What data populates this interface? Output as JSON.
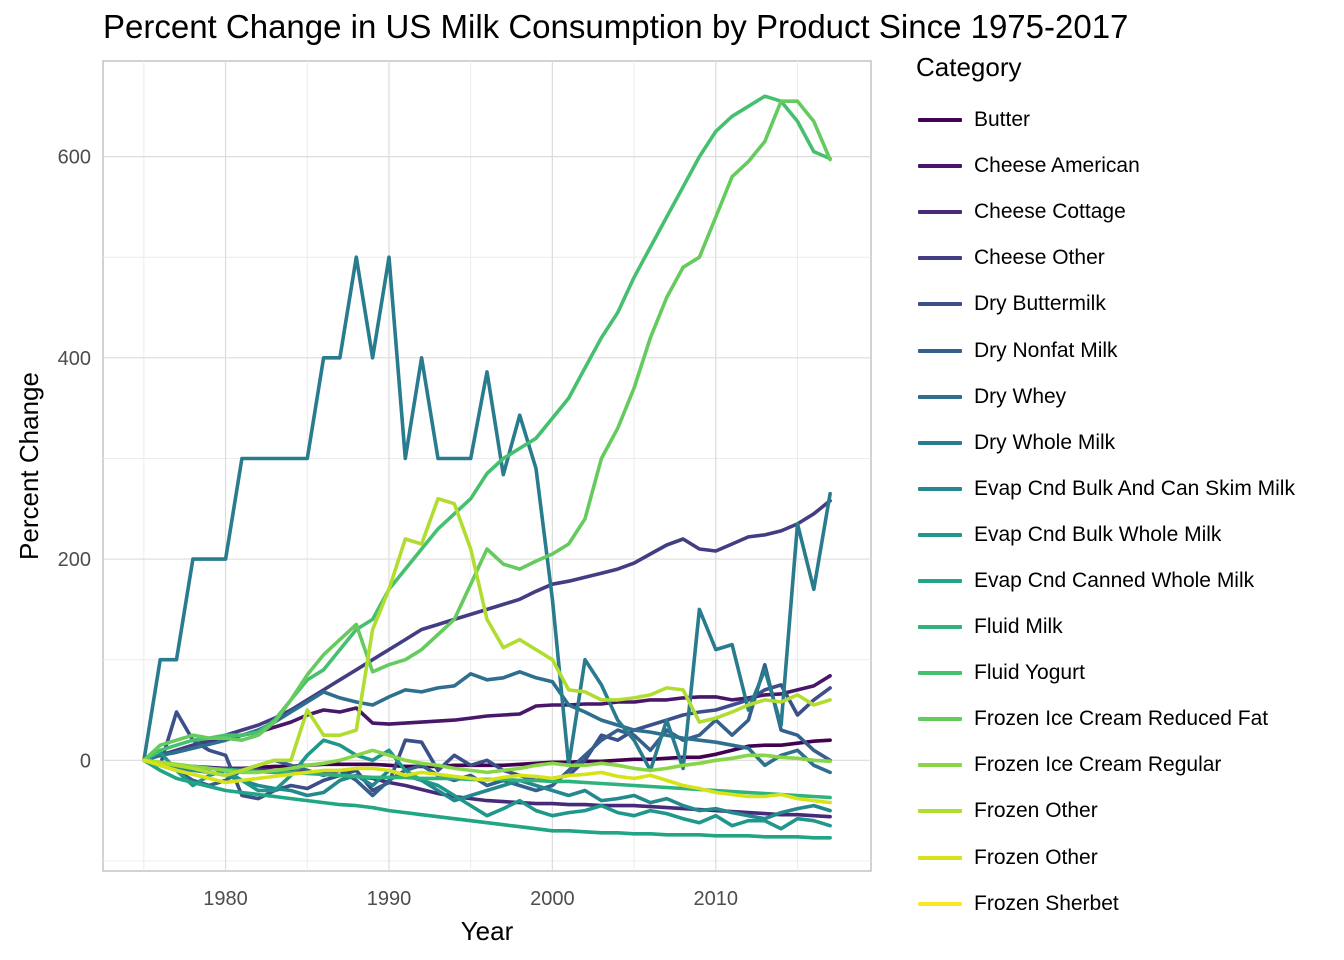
{
  "chart_data": {
    "type": "line",
    "title": "Percent Change in US Milk Consumption by Product Since 1975-2017",
    "xlabel": "Year",
    "ylabel": "Percent Change",
    "xlim": [
      1972.5,
      2019.5
    ],
    "ylim": [
      -110,
      695
    ],
    "x_ticks": [
      1980,
      1990,
      2000,
      2010
    ],
    "y_ticks": [
      0,
      200,
      400,
      600
    ],
    "grid": true,
    "legend_title": "Category",
    "legend_position": "right",
    "x": [
      1975,
      1976,
      1977,
      1978,
      1979,
      1980,
      1981,
      1982,
      1983,
      1984,
      1985,
      1986,
      1987,
      1988,
      1989,
      1990,
      1991,
      1992,
      1993,
      1994,
      1995,
      1996,
      1997,
      1998,
      1999,
      2000,
      2001,
      2002,
      2003,
      2004,
      2005,
      2006,
      2007,
      2008,
      2009,
      2010,
      2011,
      2012,
      2013,
      2014,
      2015,
      2016,
      2017
    ],
    "series": [
      {
        "name": "Butter",
        "color": "#440154",
        "values": [
          0,
          -3,
          -5,
          -7,
          -8,
          -8,
          -8,
          -7,
          -6,
          -6,
          -5,
          -4,
          -4,
          -4,
          -4,
          -5,
          -6,
          -6,
          -6,
          -5,
          -5,
          -5,
          -5,
          -4,
          -3,
          -2,
          -2,
          -1,
          -1,
          0,
          1,
          1,
          2,
          3,
          3,
          6,
          10,
          14,
          15,
          15,
          17,
          19,
          20
        ]
      },
      {
        "name": "Cheese American",
        "color": "#481769",
        "values": [
          0,
          5,
          10,
          15,
          18,
          22,
          25,
          28,
          33,
          38,
          45,
          50,
          48,
          52,
          37,
          36,
          37,
          38,
          39,
          40,
          42,
          44,
          45,
          46,
          54,
          55,
          55,
          56,
          56,
          58,
          58,
          60,
          60,
          62,
          63,
          63,
          60,
          62,
          65,
          66,
          70,
          74,
          84
        ]
      },
      {
        "name": "Cheese Cottage",
        "color": "#472A7A",
        "values": [
          0,
          -3,
          -5,
          -6,
          -7,
          -8,
          -8,
          -9,
          -10,
          -11,
          -12,
          -13,
          -15,
          -16,
          -18,
          -22,
          -25,
          -29,
          -33,
          -36,
          -38,
          -40,
          -41,
          -42,
          -43,
          -43,
          -44,
          -44,
          -45,
          -45,
          -45,
          -46,
          -47,
          -48,
          -49,
          -50,
          -51,
          -52,
          -53,
          -54,
          -54,
          -55,
          -56
        ]
      },
      {
        "name": "Cheese Other",
        "color": "#433D84",
        "values": [
          0,
          5,
          10,
          15,
          20,
          25,
          30,
          35,
          42,
          50,
          60,
          70,
          80,
          90,
          100,
          110,
          120,
          130,
          135,
          140,
          145,
          150,
          155,
          160,
          168,
          175,
          178,
          182,
          186,
          190,
          196,
          205,
          214,
          220,
          210,
          208,
          215,
          222,
          224,
          228,
          235,
          245,
          258
        ]
      },
      {
        "name": "Dry Buttermilk",
        "color": "#3C4F8A",
        "values": [
          0,
          -5,
          48,
          20,
          10,
          5,
          -35,
          -38,
          -30,
          -25,
          -28,
          -20,
          -15,
          -10,
          -30,
          -22,
          20,
          18,
          -10,
          5,
          -5,
          0,
          -10,
          -15,
          -20,
          -18,
          -15,
          0,
          25,
          20,
          30,
          35,
          40,
          45,
          48,
          50,
          55,
          60,
          70,
          75,
          45,
          60,
          72
        ]
      },
      {
        "name": "Dry Nonfat Milk",
        "color": "#35608D",
        "values": [
          0,
          -5,
          -10,
          -20,
          -25,
          -20,
          -10,
          -5,
          0,
          -5,
          -10,
          -15,
          -10,
          -20,
          -35,
          -20,
          -10,
          -5,
          -15,
          -20,
          -15,
          -25,
          -20,
          -25,
          -30,
          -25,
          -10,
          5,
          20,
          30,
          25,
          10,
          30,
          20,
          25,
          40,
          25,
          40,
          95,
          30,
          25,
          10,
          0
        ]
      },
      {
        "name": "Dry Whey",
        "color": "#2E6F8E",
        "values": [
          0,
          5,
          8,
          12,
          16,
          20,
          25,
          30,
          38,
          48,
          58,
          68,
          62,
          58,
          55,
          63,
          70,
          68,
          72,
          74,
          86,
          80,
          82,
          88,
          82,
          78,
          55,
          48,
          40,
          35,
          30,
          28,
          25,
          22,
          20,
          18,
          15,
          12,
          -5,
          5,
          10,
          -5,
          -12
        ]
      },
      {
        "name": "Dry Whole Milk",
        "color": "#297B8E",
        "values": [
          0,
          100,
          100,
          200,
          200,
          200,
          300,
          300,
          300,
          300,
          300,
          400,
          400,
          500,
          400,
          500,
          300,
          400,
          300,
          300,
          300,
          386,
          284,
          343,
          290,
          160,
          -5,
          100,
          75,
          40,
          20,
          -10,
          40,
          -8,
          150,
          110,
          115,
          50,
          90,
          35,
          235,
          170,
          265
        ]
      },
      {
        "name": "Evap Cnd Bulk And Can Skim Milk",
        "color": "#23898E",
        "values": [
          0,
          -3,
          -8,
          -10,
          -12,
          -15,
          -20,
          -25,
          -28,
          -30,
          -35,
          -32,
          -20,
          -15,
          -25,
          -10,
          -15,
          -20,
          -30,
          -40,
          -35,
          -30,
          -25,
          -20,
          -25,
          -30,
          -35,
          -30,
          -40,
          -38,
          -35,
          -42,
          -38,
          -45,
          -50,
          -48,
          -52,
          -55,
          -58,
          -52,
          -48,
          -45,
          -50
        ]
      },
      {
        "name": "Evap Cnd Bulk Whole Milk",
        "color": "#1F978B",
        "values": [
          0,
          8,
          -10,
          -25,
          -15,
          -10,
          -20,
          -30,
          -30,
          -15,
          5,
          20,
          15,
          5,
          0,
          10,
          -10,
          -20,
          -25,
          -35,
          -45,
          -55,
          -48,
          -40,
          -50,
          -55,
          -52,
          -50,
          -45,
          -52,
          -55,
          -50,
          -53,
          -58,
          -62,
          -55,
          -65,
          -60,
          -60,
          -68,
          -58,
          -60,
          -65
        ]
      },
      {
        "name": "Evap Cnd Canned Whole Milk",
        "color": "#21A585",
        "values": [
          0,
          -10,
          -18,
          -22,
          -26,
          -30,
          -32,
          -34,
          -36,
          -38,
          -40,
          -42,
          -44,
          -45,
          -47,
          -50,
          -52,
          -54,
          -56,
          -58,
          -60,
          -62,
          -64,
          -66,
          -68,
          -70,
          -70,
          -71,
          -72,
          -72,
          -73,
          -73,
          -74,
          -74,
          -74,
          -75,
          -75,
          -75,
          -76,
          -76,
          -76,
          -77,
          -77
        ]
      },
      {
        "name": "Fluid Milk",
        "color": "#2EB37C",
        "values": [
          0,
          -3,
          -5,
          -6,
          -8,
          -9,
          -10,
          -11,
          -12,
          -12,
          -13,
          -14,
          -15,
          -16,
          -17,
          -17,
          -17,
          -18,
          -18,
          -18,
          -19,
          -19,
          -19,
          -20,
          -20,
          -21,
          -21,
          -22,
          -23,
          -24,
          -25,
          -26,
          -27,
          -28,
          -29,
          -30,
          -31,
          -32,
          -33,
          -34,
          -35,
          -36,
          -37
        ]
      },
      {
        "name": "Fluid Yogurt",
        "color": "#46C06F",
        "values": [
          0,
          10,
          15,
          20,
          22,
          25,
          25,
          28,
          40,
          60,
          80,
          90,
          110,
          130,
          140,
          170,
          190,
          210,
          230,
          245,
          260,
          285,
          300,
          310,
          320,
          340,
          360,
          390,
          420,
          445,
          480,
          510,
          540,
          570,
          600,
          625,
          640,
          650,
          660,
          655,
          635,
          605,
          598
        ]
      },
      {
        "name": "Frozen Ice Cream Reduced Fat",
        "color": "#65CB5E",
        "values": [
          0,
          15,
          20,
          25,
          22,
          22,
          20,
          25,
          38,
          60,
          85,
          105,
          120,
          135,
          88,
          95,
          100,
          110,
          125,
          140,
          175,
          210,
          195,
          190,
          198,
          205,
          215,
          240,
          300,
          330,
          370,
          420,
          460,
          490,
          500,
          540,
          580,
          595,
          615,
          655,
          655,
          635,
          597
        ]
      },
      {
        "name": "Frozen Ice Cream Regular",
        "color": "#89D548",
        "values": [
          0,
          -2,
          -4,
          -6,
          -8,
          -10,
          -12,
          -12,
          -10,
          -8,
          -5,
          -3,
          0,
          5,
          10,
          5,
          0,
          -3,
          -5,
          -8,
          -10,
          -12,
          -10,
          -8,
          -5,
          -3,
          -5,
          -5,
          -3,
          -5,
          -8,
          -10,
          -8,
          -5,
          -3,
          0,
          2,
          5,
          5,
          3,
          2,
          0,
          -1
        ]
      },
      {
        "name": "Frozen Other",
        "color": "#B0DD2F",
        "values": [
          0,
          -2,
          -5,
          -8,
          -12,
          -15,
          -10,
          -5,
          0,
          0,
          50,
          25,
          25,
          30,
          130,
          170,
          220,
          215,
          260,
          255,
          210,
          140,
          112,
          120,
          110,
          100,
          70,
          68,
          60,
          60,
          62,
          65,
          72,
          70,
          38,
          42,
          48,
          55,
          60,
          58,
          65,
          55,
          60
        ]
      },
      {
        "name": "Frozen Sherbet",
        "color": "#D8E219",
        "values": [
          0,
          -5,
          -10,
          -14,
          -18,
          -22,
          -20,
          -18,
          -16,
          -14,
          -12,
          -10,
          -10,
          -8,
          -8,
          -10,
          -15,
          -12,
          -14,
          -16,
          -18,
          -20,
          -17,
          -15,
          -16,
          -18,
          -15,
          -14,
          -12,
          -16,
          -18,
          -15,
          -20,
          -25,
          -28,
          -32,
          -34,
          -36,
          -36,
          -34,
          -38,
          -40,
          -42
        ]
      }
    ],
    "legend_extra": [
      {
        "name": "Frozen Sherbet",
        "color": "#FDE725"
      }
    ]
  }
}
